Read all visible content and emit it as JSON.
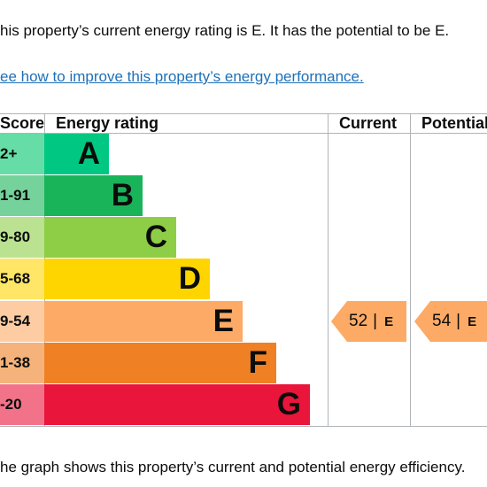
{
  "intro": "his property’s current energy rating is E. It has the potential to be E.",
  "link": "ee how to improve this property’s energy performance.",
  "table": {
    "headers": [
      "Score",
      "Energy rating",
      "Current",
      "Potential"
    ],
    "rows": [
      {
        "score": "2+",
        "rating": "A"
      },
      {
        "score": "1-91",
        "rating": "B"
      },
      {
        "score": "9-80",
        "rating": "C"
      },
      {
        "score": "5-68",
        "rating": "D"
      },
      {
        "score": "9-54",
        "rating": "E"
      },
      {
        "score": "1-38",
        "rating": "F"
      },
      {
        "score": "-20",
        "rating": "G"
      }
    ],
    "current": {
      "score": 52,
      "separator": "|",
      "rating": "E"
    },
    "potential": {
      "score": 54,
      "separator": "|",
      "rating": "E"
    }
  },
  "footer": "he graph shows this property’s current and potential energy efficiency."
}
